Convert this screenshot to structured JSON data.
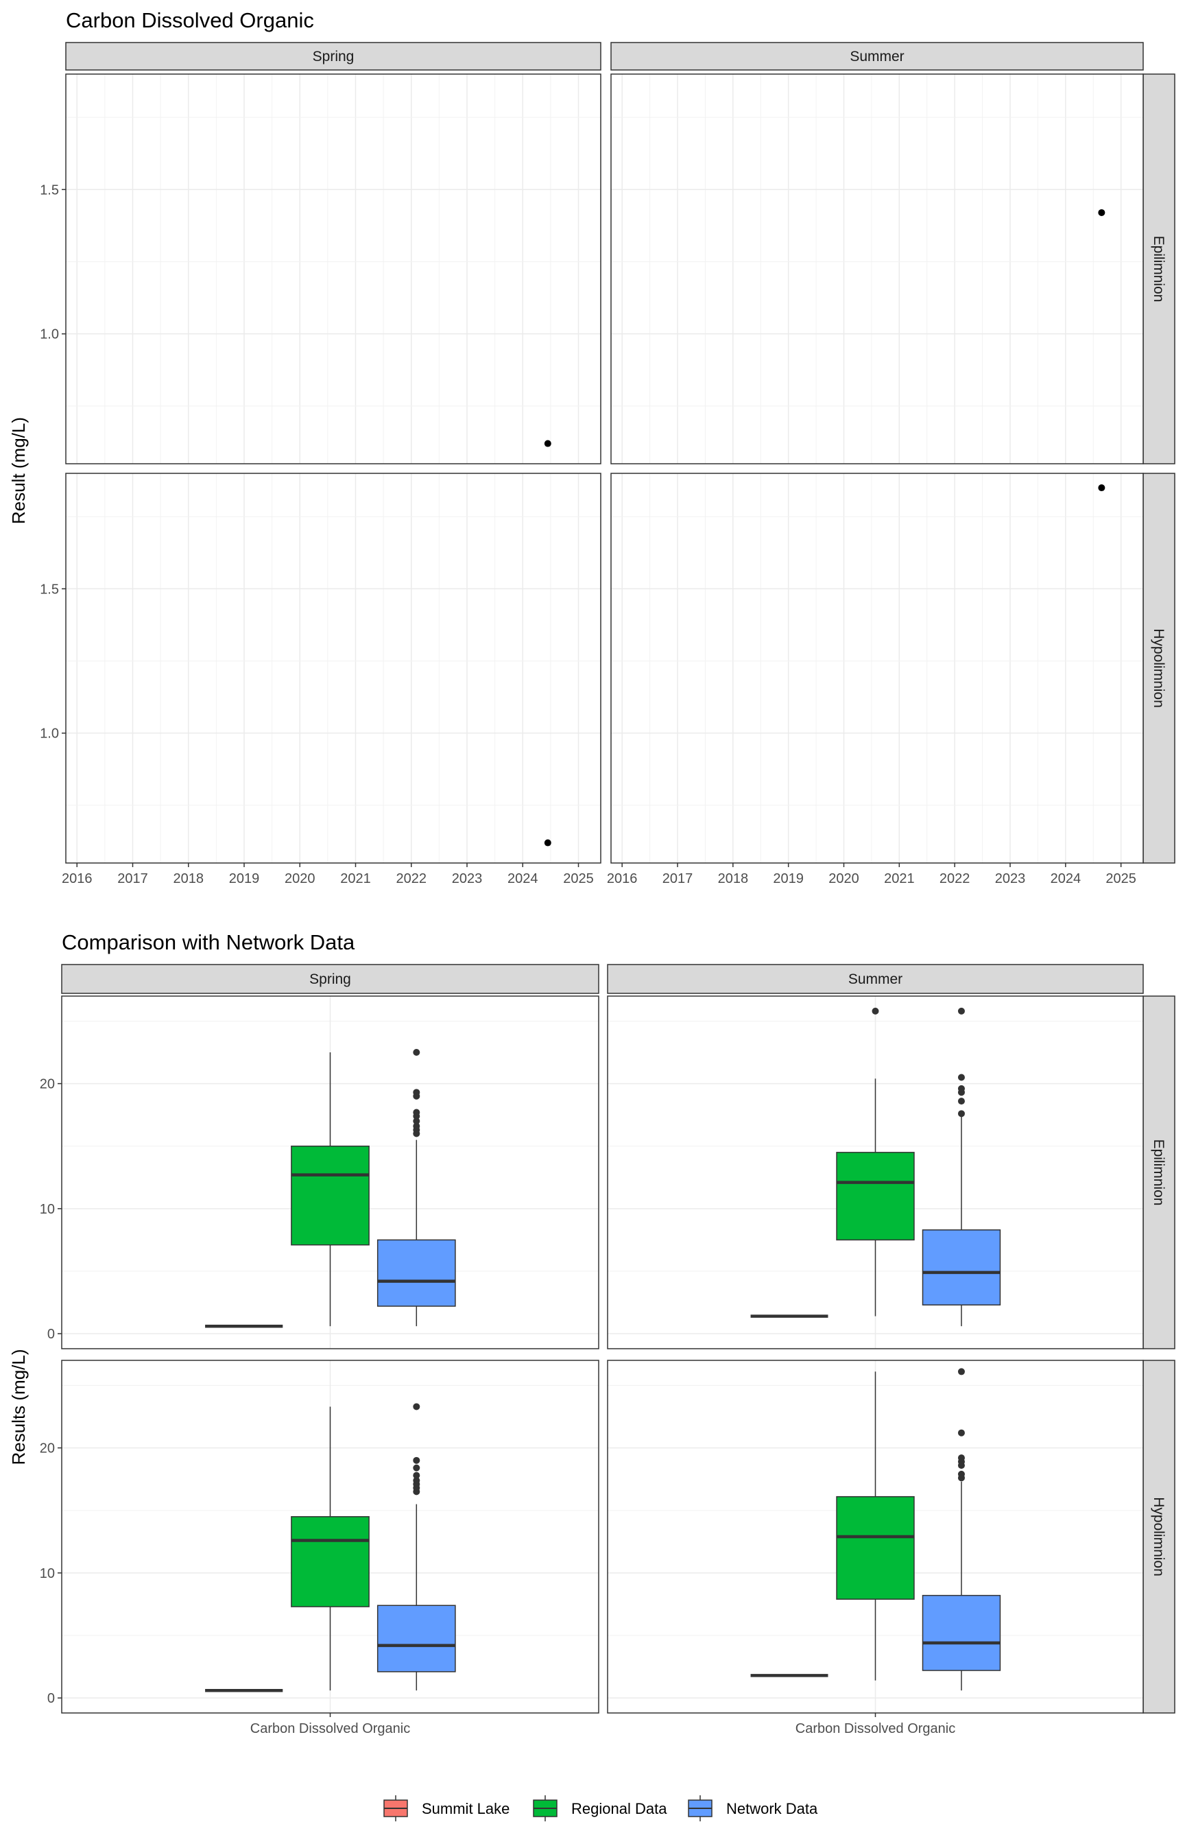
{
  "chart_data": [
    {
      "type": "scatter",
      "title": "Carbon Dissolved Organic",
      "ylabel": "Result (mg/L)",
      "xlabel": "",
      "columns": [
        "Spring",
        "Summer"
      ],
      "rows": [
        "Epilimnion",
        "Hypolimnion"
      ],
      "x_ticks": [
        "2016",
        "2017",
        "2018",
        "2019",
        "2020",
        "2021",
        "2022",
        "2023",
        "2024",
        "2025"
      ],
      "xlim": [
        2015.8,
        2025.4
      ],
      "ylim": [
        0.55,
        1.9
      ],
      "y_ticks": [
        1.0,
        1.5
      ],
      "y_tick_labels": [
        "1.0",
        "1.5"
      ],
      "grid": true,
      "points": [
        {
          "column": "Spring",
          "row": "Epilimnion",
          "x": 2024.45,
          "y": 0.62
        },
        {
          "column": "Summer",
          "row": "Epilimnion",
          "x": 2024.65,
          "y": 1.42
        },
        {
          "column": "Spring",
          "row": "Hypolimnion",
          "x": 2024.45,
          "y": 0.62
        },
        {
          "column": "Summer",
          "row": "Hypolimnion",
          "x": 2024.65,
          "y": 1.85
        }
      ]
    },
    {
      "type": "box",
      "title": "Comparison with Network Data",
      "ylabel": "Results (mg/L)",
      "xlabel": "",
      "columns": [
        "Spring",
        "Summer"
      ],
      "rows": [
        "Epilimnion",
        "Hypolimnion"
      ],
      "x_category": "Carbon Dissolved Organic",
      "ylim": [
        -1.2,
        27
      ],
      "y_ticks": [
        0,
        10,
        20
      ],
      "y_tick_labels": [
        "0",
        "10",
        "20"
      ],
      "grid": true,
      "legend": {
        "position": "bottom",
        "entries": [
          {
            "name": "Summit Lake",
            "color": "#F8766D"
          },
          {
            "name": "Regional Data",
            "color": "#00BA38"
          },
          {
            "name": "Network Data",
            "color": "#619CFF"
          }
        ]
      },
      "panels": [
        {
          "column": "Spring",
          "row": "Epilimnion",
          "boxes": [
            {
              "series": "Summit Lake",
              "min": 0.6,
              "q1": 0.6,
              "median": 0.6,
              "q3": 0.6,
              "max": 0.6,
              "outliers": []
            },
            {
              "series": "Regional Data",
              "min": 0.6,
              "q1": 7.1,
              "median": 12.7,
              "q3": 15.0,
              "max": 22.5,
              "outliers": []
            },
            {
              "series": "Network Data",
              "min": 0.6,
              "q1": 2.2,
              "median": 4.2,
              "q3": 7.5,
              "max": 15.5,
              "outliers": [
                16.0,
                16.3,
                16.6,
                17.0,
                17.4,
                17.7,
                19.0,
                19.3,
                22.5
              ]
            }
          ]
        },
        {
          "column": "Summer",
          "row": "Epilimnion",
          "boxes": [
            {
              "series": "Summit Lake",
              "min": 1.4,
              "q1": 1.4,
              "median": 1.4,
              "q3": 1.4,
              "max": 1.4,
              "outliers": []
            },
            {
              "series": "Regional Data",
              "min": 1.4,
              "q1": 7.5,
              "median": 12.1,
              "q3": 14.5,
              "max": 20.4,
              "outliers": [
                25.8
              ]
            },
            {
              "series": "Network Data",
              "min": 0.6,
              "q1": 2.3,
              "median": 4.9,
              "q3": 8.3,
              "max": 17.4,
              "outliers": [
                17.6,
                18.6,
                19.3,
                19.6,
                20.5,
                25.8
              ]
            }
          ]
        },
        {
          "column": "Spring",
          "row": "Hypolimnion",
          "boxes": [
            {
              "series": "Summit Lake",
              "min": 0.6,
              "q1": 0.6,
              "median": 0.6,
              "q3": 0.6,
              "max": 0.6,
              "outliers": []
            },
            {
              "series": "Regional Data",
              "min": 0.6,
              "q1": 7.3,
              "median": 12.6,
              "q3": 14.5,
              "max": 23.3,
              "outliers": []
            },
            {
              "series": "Network Data",
              "min": 0.6,
              "q1": 2.1,
              "median": 4.2,
              "q3": 7.4,
              "max": 15.5,
              "outliers": [
                16.5,
                16.8,
                17.1,
                17.4,
                17.8,
                18.4,
                19.0,
                23.3
              ]
            }
          ]
        },
        {
          "column": "Summer",
          "row": "Hypolimnion",
          "boxes": [
            {
              "series": "Summit Lake",
              "min": 1.8,
              "q1": 1.8,
              "median": 1.8,
              "q3": 1.8,
              "max": 1.8,
              "outliers": []
            },
            {
              "series": "Regional Data",
              "min": 1.4,
              "q1": 7.9,
              "median": 12.9,
              "q3": 16.1,
              "max": 26.1,
              "outliers": []
            },
            {
              "series": "Network Data",
              "min": 0.6,
              "q1": 2.2,
              "median": 4.4,
              "q3": 8.2,
              "max": 17.3,
              "outliers": [
                17.6,
                17.9,
                18.6,
                18.9,
                19.2,
                21.2,
                26.1
              ]
            }
          ]
        }
      ]
    }
  ]
}
